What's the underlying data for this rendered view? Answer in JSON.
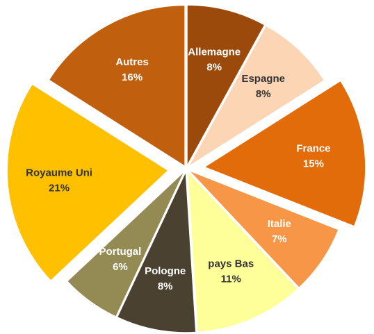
{
  "chart_data": {
    "type": "pie",
    "categories": [
      "Allemagne",
      "Espagne",
      "France",
      "Italie",
      "pays Bas",
      "Pologne",
      "Portugal",
      "Royaume Uni",
      "Autres"
    ],
    "values": [
      8,
      8,
      15,
      7,
      11,
      8,
      6,
      21,
      16
    ],
    "value_labels": [
      "8%",
      "8%",
      "15%",
      "7%",
      "11%",
      "8%",
      "6%",
      "21%",
      "16%"
    ],
    "colors": [
      "#9c4a0c",
      "#fcd5b4",
      "#e36c0a",
      "#f79646",
      "#ffff99",
      "#4a4131",
      "#948a54",
      "#ffc000",
      "#c0600f"
    ]
  }
}
